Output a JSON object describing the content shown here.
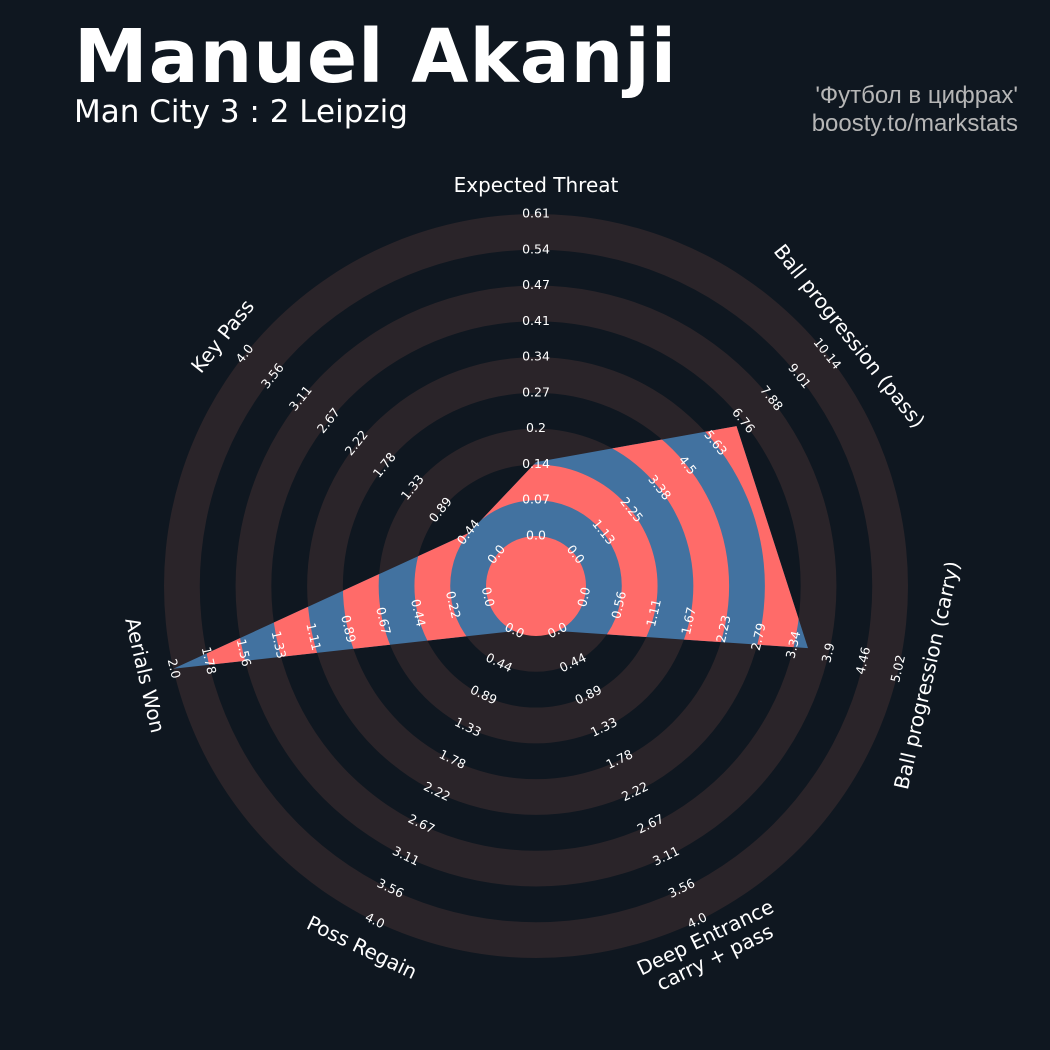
{
  "header": {
    "title": "Manuel Akanji",
    "subtitle": "Man City 3 : 2 Leipzig",
    "credit_line1": "'Футбол в цифрах'",
    "credit_line2": "boosty.to/markstats"
  },
  "colors": {
    "background": "#0f1720",
    "ring": "#2a2429",
    "player_fill": "#4272a0",
    "player_band": "#ff6b69",
    "text": "#ffffff",
    "credit_text": "#b6b6b6"
  },
  "chart_data": {
    "type": "radar",
    "title": "Manuel Akanji",
    "subtitle": "Man City 3 : 2 Leipzig",
    "metrics": [
      {
        "label": "Expected Threat",
        "min": 0.0,
        "max": 0.61,
        "value": 0.14,
        "ticks": [
          "0.0",
          "0.07",
          "0.14",
          "0.2",
          "0.27",
          "0.34",
          "0.41",
          "0.47",
          "0.54",
          "0.61"
        ]
      },
      {
        "label": "Ball progression (pass)",
        "min": 0.0,
        "max": 10.14,
        "value": 6.5,
        "ticks": [
          "0.0",
          "1.13",
          "2.25",
          "3.38",
          "4.5",
          "5.63",
          "6.76",
          "7.88",
          "9.01",
          "10.14"
        ]
      },
      {
        "label": "Ball progression (carry)",
        "min": 0.0,
        "max": 5.02,
        "value": 3.57,
        "ticks": [
          "0.0",
          "0.56",
          "1.11",
          "1.67",
          "2.23",
          "2.79",
          "3.34",
          "3.9",
          "4.46",
          "5.02"
        ]
      },
      {
        "label": "Deep Entrance\ncarry + pass",
        "min": 0.0,
        "max": 4.0,
        "value": 0.0,
        "ticks": [
          "0.0",
          "0.44",
          "0.89",
          "1.33",
          "1.78",
          "2.22",
          "2.67",
          "3.11",
          "3.56",
          "4.0"
        ]
      },
      {
        "label": "Poss Regain",
        "min": 0.0,
        "max": 4.0,
        "value": 0.0,
        "ticks": [
          "0.0",
          "0.44",
          "0.89",
          "1.33",
          "1.78",
          "2.22",
          "2.67",
          "3.11",
          "3.56",
          "4.0"
        ]
      },
      {
        "label": "Aerials Won",
        "min": 0.0,
        "max": 2.0,
        "value": 2.0,
        "ticks": [
          "0.0",
          "0.22",
          "0.44",
          "0.67",
          "0.89",
          "1.11",
          "1.33",
          "1.56",
          "1.78",
          "2.0"
        ]
      },
      {
        "label": "Key Pass",
        "min": 0.0,
        "max": 4.0,
        "value": 0.44,
        "ticks": [
          "0.0",
          "0.44",
          "0.89",
          "1.33",
          "1.78",
          "2.22",
          "2.67",
          "3.11",
          "3.56",
          "4.0"
        ]
      }
    ],
    "grid": true,
    "legend": "none"
  }
}
